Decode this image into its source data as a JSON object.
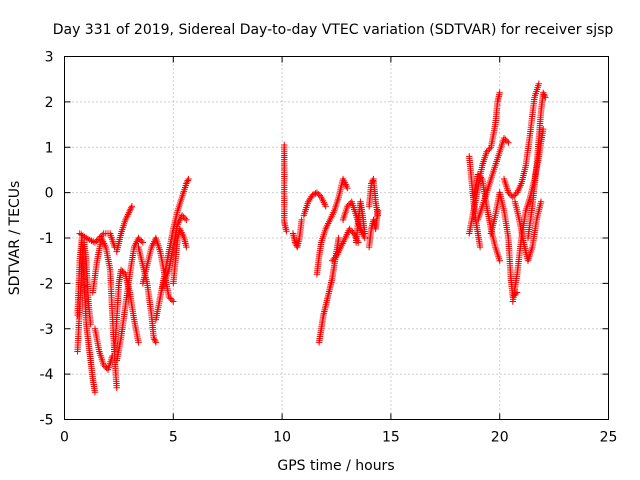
{
  "chart_data": {
    "type": "scatter",
    "title": "Day 331 of 2019, Sidereal Day-to-day VTEC variation (SDTVAR) for receiver sjsp",
    "xlabel": "GPS time / hours",
    "ylabel": "SDTVAR / TECUs",
    "xlim": [
      0,
      25
    ],
    "ylim": [
      -5,
      3
    ],
    "xticks": [
      "0",
      "5",
      "10",
      "15",
      "20",
      "25"
    ],
    "yticks": [
      "-5",
      "-4",
      "-3",
      "-2",
      "-1",
      "0",
      "1",
      "2",
      "3"
    ],
    "grid": true,
    "marker": "+",
    "color": "#ff0000",
    "series": [
      {
        "name": "SDTVAR",
        "segments": [
          [
            [
              0.6,
              -2.7
            ],
            [
              0.7,
              -1.5
            ],
            [
              0.8,
              -1.0
            ],
            [
              0.9,
              -2.0
            ],
            [
              1.0,
              -2.9
            ],
            [
              1.1,
              -3.3
            ],
            [
              1.2,
              -3.7
            ],
            [
              1.3,
              -4.1
            ],
            [
              1.4,
              -4.4
            ]
          ],
          [
            [
              0.6,
              -3.5
            ],
            [
              0.7,
              -2.5
            ],
            [
              0.8,
              -1.6
            ],
            [
              0.9,
              -1.1
            ],
            [
              1.0,
              -1.5
            ],
            [
              1.1,
              -2.4
            ],
            [
              1.2,
              -2.9
            ]
          ],
          [
            [
              1.3,
              -2.2
            ],
            [
              1.5,
              -1.5
            ],
            [
              1.7,
              -1.0
            ],
            [
              1.9,
              -1.2
            ],
            [
              2.1,
              -1.7
            ],
            [
              2.2,
              -2.7
            ],
            [
              2.3,
              -3.6
            ],
            [
              2.4,
              -4.3
            ]
          ],
          [
            [
              1.4,
              -3.0
            ],
            [
              1.6,
              -3.5
            ],
            [
              1.8,
              -3.8
            ],
            [
              2.0,
              -3.9
            ],
            [
              2.2,
              -3.6
            ]
          ],
          [
            [
              0.7,
              -0.9
            ],
            [
              1.0,
              -1.0
            ],
            [
              1.4,
              -1.1
            ],
            [
              1.8,
              -0.9
            ],
            [
              2.1,
              -0.9
            ],
            [
              2.3,
              -1.2
            ]
          ],
          [
            [
              2.4,
              -1.3
            ],
            [
              2.6,
              -0.9
            ],
            [
              2.8,
              -0.6
            ],
            [
              3.0,
              -0.4
            ],
            [
              3.1,
              -0.3
            ]
          ],
          [
            [
              2.3,
              -3.5
            ],
            [
              2.4,
              -2.8
            ],
            [
              2.5,
              -2.0
            ],
            [
              2.6,
              -1.7
            ],
            [
              2.8,
              -1.8
            ],
            [
              3.0,
              -2.2
            ],
            [
              3.2,
              -2.8
            ],
            [
              3.4,
              -3.3
            ]
          ],
          [
            [
              2.4,
              -3.7
            ],
            [
              2.6,
              -3.2
            ],
            [
              2.8,
              -2.5
            ],
            [
              3.0,
              -1.8
            ],
            [
              3.2,
              -1.2
            ],
            [
              3.4,
              -1.0
            ],
            [
              3.6,
              -1.1
            ]
          ],
          [
            [
              3.4,
              -1.2
            ],
            [
              3.6,
              -1.6
            ],
            [
              3.8,
              -2.0
            ],
            [
              4.0,
              -2.7
            ],
            [
              4.1,
              -3.2
            ],
            [
              4.2,
              -3.3
            ]
          ],
          [
            [
              3.6,
              -2.0
            ],
            [
              3.8,
              -1.6
            ],
            [
              4.0,
              -1.2
            ],
            [
              4.2,
              -1.0
            ],
            [
              4.4,
              -1.3
            ],
            [
              4.6,
              -1.8
            ],
            [
              4.8,
              -2.3
            ],
            [
              5.0,
              -2.4
            ]
          ],
          [
            [
              4.2,
              -2.8
            ],
            [
              4.4,
              -2.3
            ],
            [
              4.6,
              -1.8
            ],
            [
              4.8,
              -1.3
            ],
            [
              5.0,
              -0.8
            ],
            [
              5.2,
              -0.4
            ],
            [
              5.4,
              -0.1
            ],
            [
              5.6,
              0.2
            ],
            [
              5.7,
              0.3
            ]
          ],
          [
            [
              4.5,
              -2.1
            ],
            [
              4.8,
              -1.7
            ],
            [
              5.0,
              -1.2
            ],
            [
              5.2,
              -0.7
            ],
            [
              5.4,
              -0.5
            ],
            [
              5.6,
              -0.6
            ]
          ],
          [
            [
              5.0,
              -2.0
            ],
            [
              5.1,
              -1.5
            ],
            [
              5.2,
              -1.0
            ],
            [
              5.3,
              -0.8
            ],
            [
              5.5,
              -1.0
            ],
            [
              5.6,
              -1.2
            ]
          ],
          [
            [
              10.1,
              1.05
            ],
            [
              10.1,
              0.45
            ],
            [
              10.1,
              -0.65
            ],
            [
              10.2,
              -0.85
            ]
          ],
          [
            [
              10.5,
              -0.9
            ],
            [
              10.6,
              -1.1
            ],
            [
              10.7,
              -1.2
            ],
            [
              10.8,
              -1.0
            ],
            [
              10.9,
              -0.6
            ]
          ],
          [
            [
              11.0,
              -0.5
            ],
            [
              11.2,
              -0.2
            ],
            [
              11.4,
              -0.05
            ],
            [
              11.6,
              0.0
            ],
            [
              11.8,
              -0.1
            ],
            [
              12.0,
              -0.3
            ]
          ],
          [
            [
              11.6,
              -1.8
            ],
            [
              11.7,
              -1.4
            ],
            [
              11.8,
              -1.1
            ],
            [
              12.0,
              -0.8
            ],
            [
              12.2,
              -0.6
            ],
            [
              12.4,
              -0.4
            ],
            [
              12.6,
              -0.1
            ],
            [
              12.8,
              0.3
            ],
            [
              13.0,
              0.1
            ]
          ],
          [
            [
              11.7,
              -3.3
            ],
            [
              11.8,
              -3.0
            ],
            [
              11.9,
              -2.7
            ],
            [
              12.0,
              -2.5
            ],
            [
              12.1,
              -2.3
            ],
            [
              12.2,
              -2.1
            ],
            [
              12.3,
              -1.9
            ],
            [
              12.4,
              -1.6
            ],
            [
              12.5,
              -1.3
            ],
            [
              12.6,
              -1.0
            ]
          ],
          [
            [
              12.3,
              -1.5
            ],
            [
              12.5,
              -1.4
            ],
            [
              12.7,
              -1.2
            ],
            [
              12.9,
              -1.0
            ],
            [
              13.1,
              -0.8
            ],
            [
              13.3,
              -0.9
            ],
            [
              13.5,
              -1.1
            ]
          ],
          [
            [
              12.8,
              -0.6
            ],
            [
              13.0,
              -0.3
            ],
            [
              13.2,
              -0.2
            ],
            [
              13.4,
              -0.5
            ],
            [
              13.6,
              -0.8
            ],
            [
              13.8,
              -1.0
            ]
          ],
          [
            [
              13.4,
              -1.1
            ],
            [
              13.5,
              -0.6
            ],
            [
              13.6,
              -0.2
            ],
            [
              13.7,
              -0.5
            ],
            [
              13.8,
              -0.9
            ]
          ],
          [
            [
              14.0,
              -0.3
            ],
            [
              14.1,
              0.2
            ],
            [
              14.2,
              0.3
            ],
            [
              14.3,
              -0.2
            ],
            [
              14.4,
              -0.5
            ]
          ],
          [
            [
              14.0,
              -1.2
            ],
            [
              14.1,
              -0.8
            ],
            [
              14.2,
              -0.6
            ],
            [
              14.3,
              -0.8
            ],
            [
              14.4,
              -0.4
            ]
          ],
          [
            [
              18.6,
              0.8
            ],
            [
              18.7,
              0.3
            ],
            [
              18.8,
              -0.2
            ],
            [
              18.9,
              -0.6
            ],
            [
              19.0,
              -0.9
            ],
            [
              19.1,
              -1.2
            ]
          ],
          [
            [
              18.6,
              -0.9
            ],
            [
              18.8,
              -0.4
            ],
            [
              19.0,
              0.1
            ],
            [
              19.2,
              0.6
            ],
            [
              19.4,
              0.9
            ],
            [
              19.6,
              1.0
            ],
            [
              19.8,
              1.5
            ],
            [
              19.9,
              2.0
            ],
            [
              20.0,
              2.2
            ]
          ],
          [
            [
              18.8,
              -0.1
            ],
            [
              19.0,
              0.4
            ],
            [
              19.2,
              0.3
            ],
            [
              19.4,
              -0.3
            ],
            [
              19.6,
              -0.8
            ],
            [
              19.8,
              -1.2
            ],
            [
              20.0,
              -1.5
            ]
          ],
          [
            [
              19.0,
              -0.6
            ],
            [
              19.2,
              -0.3
            ],
            [
              19.4,
              0.0
            ],
            [
              19.6,
              0.3
            ],
            [
              19.8,
              0.6
            ],
            [
              20.0,
              0.9
            ],
            [
              20.2,
              1.2
            ],
            [
              20.4,
              1.1
            ]
          ],
          [
            [
              19.6,
              -0.9
            ],
            [
              19.8,
              -0.5
            ],
            [
              20.0,
              0.0
            ],
            [
              20.2,
              -0.4
            ],
            [
              20.4,
              -1.0
            ],
            [
              20.5,
              -1.8
            ],
            [
              20.6,
              -2.3
            ],
            [
              20.8,
              -2.2
            ]
          ],
          [
            [
              20.6,
              -2.4
            ],
            [
              20.8,
              -1.8
            ],
            [
              21.0,
              -1.0
            ],
            [
              21.2,
              -0.4
            ],
            [
              21.4,
              -0.1
            ],
            [
              21.6,
              0.3
            ],
            [
              21.8,
              0.8
            ],
            [
              22.0,
              1.4
            ]
          ],
          [
            [
              20.2,
              0.3
            ],
            [
              20.4,
              0.0
            ],
            [
              20.6,
              -0.1
            ],
            [
              20.8,
              0.0
            ],
            [
              21.0,
              0.2
            ],
            [
              21.2,
              0.6
            ],
            [
              21.4,
              1.3
            ],
            [
              21.6,
              2.1
            ],
            [
              21.8,
              2.4
            ]
          ],
          [
            [
              20.7,
              -0.2
            ],
            [
              20.9,
              -0.6
            ],
            [
              21.1,
              -1.1
            ],
            [
              21.3,
              -1.5
            ],
            [
              21.5,
              -1.2
            ],
            [
              21.7,
              -0.6
            ],
            [
              21.9,
              -0.2
            ]
          ],
          [
            [
              21.3,
              -1.0
            ],
            [
              21.5,
              -0.3
            ],
            [
              21.7,
              0.6
            ],
            [
              21.8,
              1.2
            ],
            [
              21.9,
              1.8
            ],
            [
              22.0,
              2.2
            ],
            [
              22.1,
              2.1
            ]
          ]
        ]
      }
    ]
  }
}
